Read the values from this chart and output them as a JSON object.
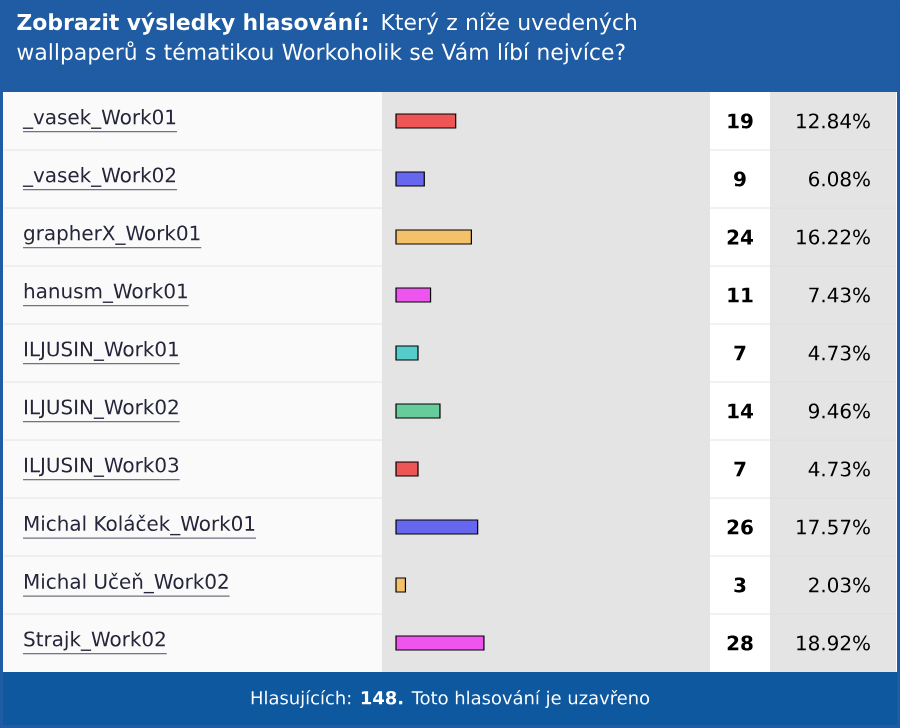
{
  "chart_data": {
    "type": "bar",
    "orientation": "horizontal",
    "title": "**Zobrazit výsledky hlasování:** Který z níže uvedených wallpaperů s tématikou Workoholik se Vám líbí nejvíce?",
    "categories": [
      "_vasek_Work01",
      "_vasek_Work02",
      "grapherX_Work01",
      "hanusm_Work01",
      "ILJUSIN_Work01",
      "ILJUSIN_Work02",
      "ILJUSIN_Work03",
      "Michal Koláček_Work01",
      "Michal Učeň_Work02",
      "Strajk_Work02"
    ],
    "values": [
      19,
      9,
      24,
      11,
      7,
      14,
      7,
      26,
      3,
      28
    ],
    "colors": [
      "#ee5555",
      "#6666ee",
      "#f5c06a",
      "#ee55ee",
      "#55cccc",
      "#66cc99",
      "#ee5555",
      "#6666ee",
      "#f5c06a",
      "#ee55ee"
    ],
    "xlim": [
      0,
      100
    ],
    "data_labels": true,
    "annotations": [
      "12.84%",
      "6.08%",
      "16.22%",
      "7.43%",
      "4.73%",
      "9.46%",
      "4.73%",
      "17.57%",
      "2.03%",
      "18.92%",
      "Hlasujících: **148.** Toto hlasování je uzavřeno"
    ]
  }
}
